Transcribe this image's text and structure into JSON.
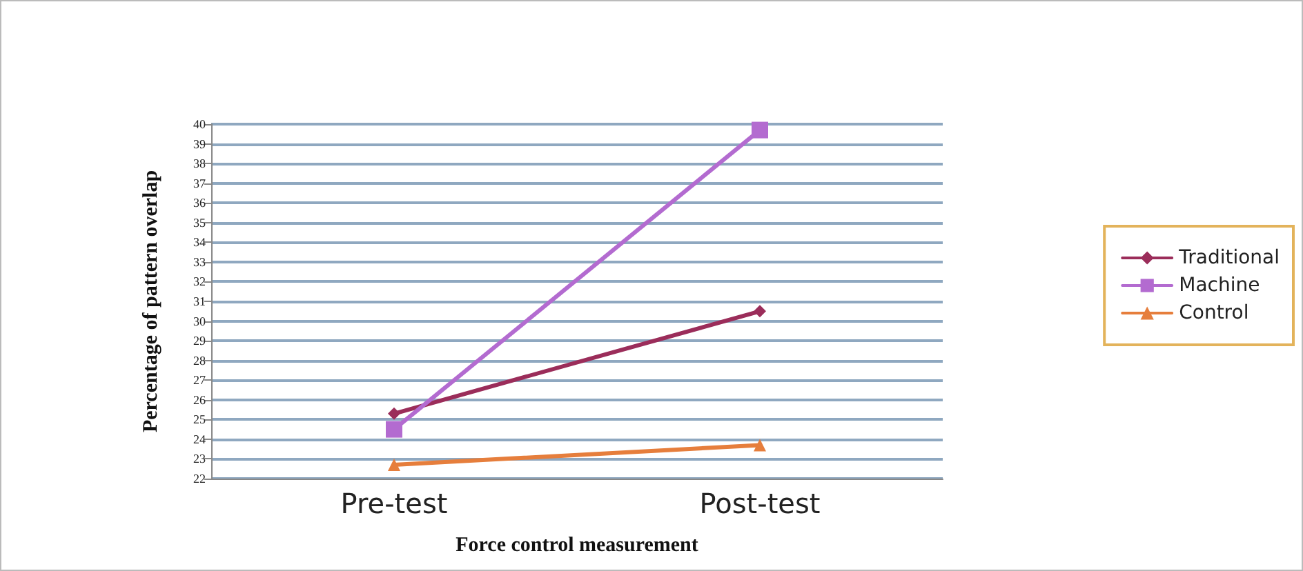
{
  "chart_data": {
    "type": "line",
    "xlabel": "Force control measurement",
    "ylabel": "Percentage of pattern overlap",
    "categories": [
      "Pre-test",
      "Post-test"
    ],
    "series": [
      {
        "name": "Traditional",
        "color": "#9b2d5a",
        "marker": "diamond",
        "values": [
          25.3,
          30.5
        ]
      },
      {
        "name": "Machine",
        "color": "#b36bd0",
        "marker": "square",
        "values": [
          24.5,
          39.7
        ]
      },
      {
        "name": "Control",
        "color": "#e67e3c",
        "marker": "triangle",
        "values": [
          22.7,
          23.7
        ]
      }
    ],
    "ylim": [
      22,
      40
    ],
    "yticks": [
      22,
      23,
      24,
      25,
      26,
      27,
      28,
      29,
      30,
      31,
      32,
      33,
      34,
      35,
      36,
      37,
      38,
      39,
      40
    ],
    "grid": "y",
    "legend": "right"
  }
}
